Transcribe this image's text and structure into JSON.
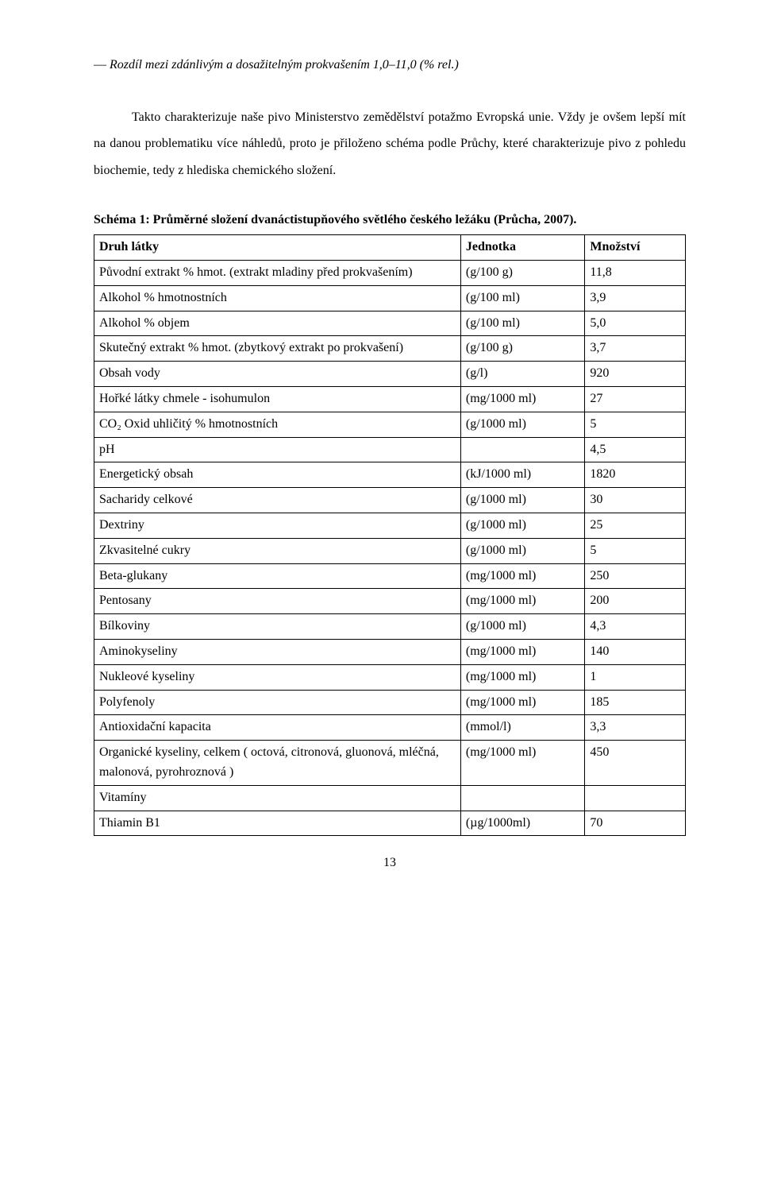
{
  "intro_line": "― Rozdíl mezi zdánlivým a dosažitelným prokvašením 1,0–11,0 (% rel.)",
  "paragraph": "Takto charakterizuje naše pivo Ministerstvo zemědělství potažmo Evropská unie. Vždy je ovšem lepší mít na danou problematiku více náhledů, proto je přiloženo schéma podle Průchy, které charakterizuje pivo z pohledu biochemie, tedy z hlediska chemického složení.",
  "schema_title": "Schéma 1: Průměrné složení dvanáctistupňového světlého českého ležáku (Průcha, 2007).",
  "table": {
    "headers": [
      "Druh látky",
      "Jednotka",
      "Množství"
    ],
    "rows": [
      [
        "Původní extrakt % hmot. (extrakt mladiny před prokvašením)",
        "(g/100 g)",
        "11,8"
      ],
      [
        "Alkohol % hmotnostních",
        "(g/100 ml)",
        "3,9"
      ],
      [
        "Alkohol % objem",
        "(g/100 ml)",
        "5,0"
      ],
      [
        "Skutečný extrakt % hmot. (zbytkový extrakt po prokvašení)",
        "(g/100 g)",
        "3,7"
      ],
      [
        "Obsah vody",
        "(g/l)",
        "920"
      ],
      [
        "Hořké látky chmele - isohumulon",
        "(mg/1000 ml)",
        "27"
      ],
      [
        "CO₂ Oxid uhličitý % hmotnostních",
        "(g/1000 ml)",
        "5"
      ],
      [
        "pH",
        "",
        "4,5"
      ],
      [
        "Energetický obsah",
        "(kJ/1000 ml)",
        "1820"
      ],
      [
        "Sacharidy celkové",
        "(g/1000 ml)",
        "30"
      ],
      [
        "Dextriny",
        "(g/1000 ml)",
        "25"
      ],
      [
        "Zkvasitelné cukry",
        "(g/1000 ml)",
        "5"
      ],
      [
        "Beta-glukany",
        "(mg/1000 ml)",
        "250"
      ],
      [
        "Pentosany",
        "(mg/1000 ml)",
        "200"
      ],
      [
        "Bílkoviny",
        "(g/1000 ml)",
        "4,3"
      ],
      [
        "Aminokyseliny",
        "(mg/1000 ml)",
        "140"
      ],
      [
        "Nukleové kyseliny",
        "(mg/1000 ml)",
        "1"
      ],
      [
        "Polyfenoly",
        "(mg/1000 ml)",
        "185"
      ],
      [
        "Antioxidační kapacita",
        "(mmol/l)",
        "3,3"
      ],
      [
        "Organické kyseliny, celkem ( octová, citronová, gluonová, mléčná, malonová, pyrohroznová )",
        "(mg/1000 ml)",
        "450"
      ],
      [
        "Vitamíny",
        "",
        ""
      ],
      [
        "Thiamin B1",
        "(µg/1000ml)",
        "70"
      ]
    ]
  },
  "page_number": "13"
}
